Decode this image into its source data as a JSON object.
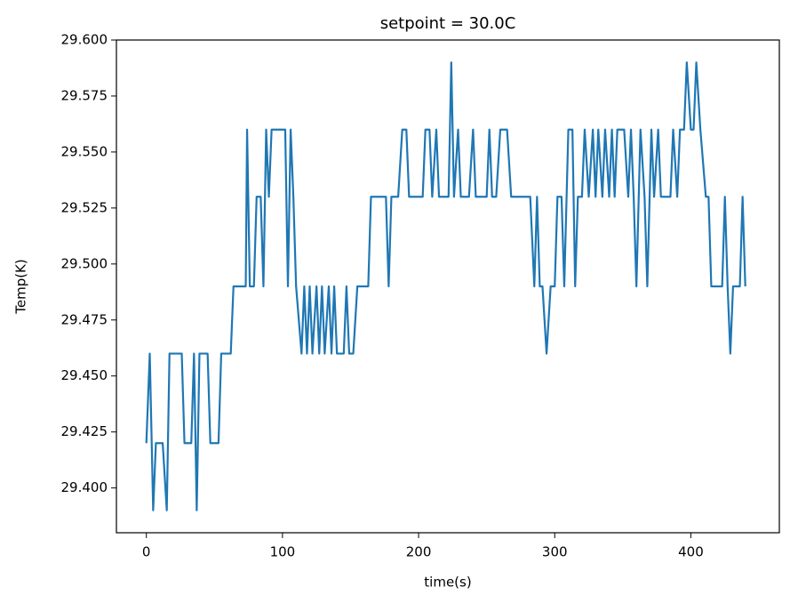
{
  "chart_data": {
    "type": "line",
    "title": "setpoint = 30.0C",
    "xlabel": "time(s)",
    "ylabel": "Temp(K)",
    "xlim": [
      -22,
      465
    ],
    "ylim": [
      29.38,
      29.6
    ],
    "xticks": [
      0,
      100,
      200,
      300,
      400
    ],
    "yticks": [
      {
        "value": 29.4,
        "label": "29.400"
      },
      {
        "value": 29.425,
        "label": "29.425"
      },
      {
        "value": 29.45,
        "label": "29.450"
      },
      {
        "value": 29.475,
        "label": "29.475"
      },
      {
        "value": 29.5,
        "label": "29.500"
      },
      {
        "value": 29.525,
        "label": "29.525"
      },
      {
        "value": 29.55,
        "label": "29.550"
      },
      {
        "value": 29.575,
        "label": "29.575"
      },
      {
        "value": 29.6,
        "label": "29.600"
      }
    ],
    "grid": false,
    "series": [
      {
        "color": "#1f77b4",
        "x": [
          0,
          2.5,
          5,
          7,
          12,
          15,
          17,
          26,
          28,
          33,
          35,
          37,
          39,
          45,
          47,
          53,
          55,
          62,
          64,
          73,
          74,
          76,
          79,
          81,
          84,
          86,
          88,
          90,
          92,
          100,
          102,
          104,
          106,
          108,
          110,
          114,
          116,
          118,
          120,
          122,
          125,
          127,
          129,
          131,
          134,
          136,
          138,
          140,
          145,
          147,
          149,
          152,
          155,
          163,
          165,
          176,
          178,
          180,
          185,
          188,
          191,
          193,
          203,
          205,
          208,
          210,
          213,
          215,
          222,
          224,
          226,
          229,
          231,
          237,
          240,
          242,
          250,
          252,
          254,
          257,
          260,
          265,
          268,
          282,
          285,
          287,
          289,
          291,
          294,
          297,
          300,
          302,
          305,
          307,
          310,
          313,
          315,
          317,
          320,
          322,
          325,
          328,
          330,
          332,
          335,
          337,
          340,
          342,
          344,
          346,
          351,
          354,
          356,
          358,
          360,
          363,
          366,
          368,
          371,
          373,
          376,
          378,
          385,
          387,
          390,
          392,
          395,
          397,
          400,
          402,
          404,
          407,
          411,
          413,
          415,
          423,
          425,
          427,
          429,
          431,
          436,
          438,
          440
        ],
        "values": [
          29.42,
          29.46,
          29.39,
          29.42,
          29.42,
          29.39,
          29.46,
          29.46,
          29.42,
          29.42,
          29.46,
          29.39,
          29.46,
          29.46,
          29.42,
          29.42,
          29.46,
          29.46,
          29.49,
          29.49,
          29.56,
          29.49,
          29.49,
          29.53,
          29.53,
          29.49,
          29.56,
          29.53,
          29.56,
          29.56,
          29.56,
          29.49,
          29.56,
          29.53,
          29.49,
          29.46,
          29.49,
          29.46,
          29.49,
          29.46,
          29.49,
          29.46,
          29.49,
          29.46,
          29.49,
          29.46,
          29.49,
          29.46,
          29.46,
          29.49,
          29.46,
          29.46,
          29.49,
          29.49,
          29.53,
          29.53,
          29.49,
          29.53,
          29.53,
          29.56,
          29.56,
          29.53,
          29.53,
          29.56,
          29.56,
          29.53,
          29.56,
          29.53,
          29.53,
          29.59,
          29.53,
          29.56,
          29.53,
          29.53,
          29.56,
          29.53,
          29.53,
          29.56,
          29.53,
          29.53,
          29.56,
          29.56,
          29.53,
          29.53,
          29.49,
          29.53,
          29.49,
          29.49,
          29.46,
          29.49,
          29.49,
          29.53,
          29.53,
          29.49,
          29.56,
          29.56,
          29.49,
          29.53,
          29.53,
          29.56,
          29.53,
          29.56,
          29.53,
          29.56,
          29.53,
          29.56,
          29.53,
          29.56,
          29.53,
          29.56,
          29.56,
          29.53,
          29.56,
          29.53,
          29.49,
          29.56,
          29.53,
          29.49,
          29.56,
          29.53,
          29.56,
          29.53,
          29.53,
          29.56,
          29.53,
          29.56,
          29.56,
          29.59,
          29.56,
          29.56,
          29.59,
          29.56,
          29.53,
          29.53,
          29.49,
          29.49,
          29.53,
          29.49,
          29.46,
          29.49,
          29.49,
          29.53,
          29.49
        ]
      }
    ]
  }
}
